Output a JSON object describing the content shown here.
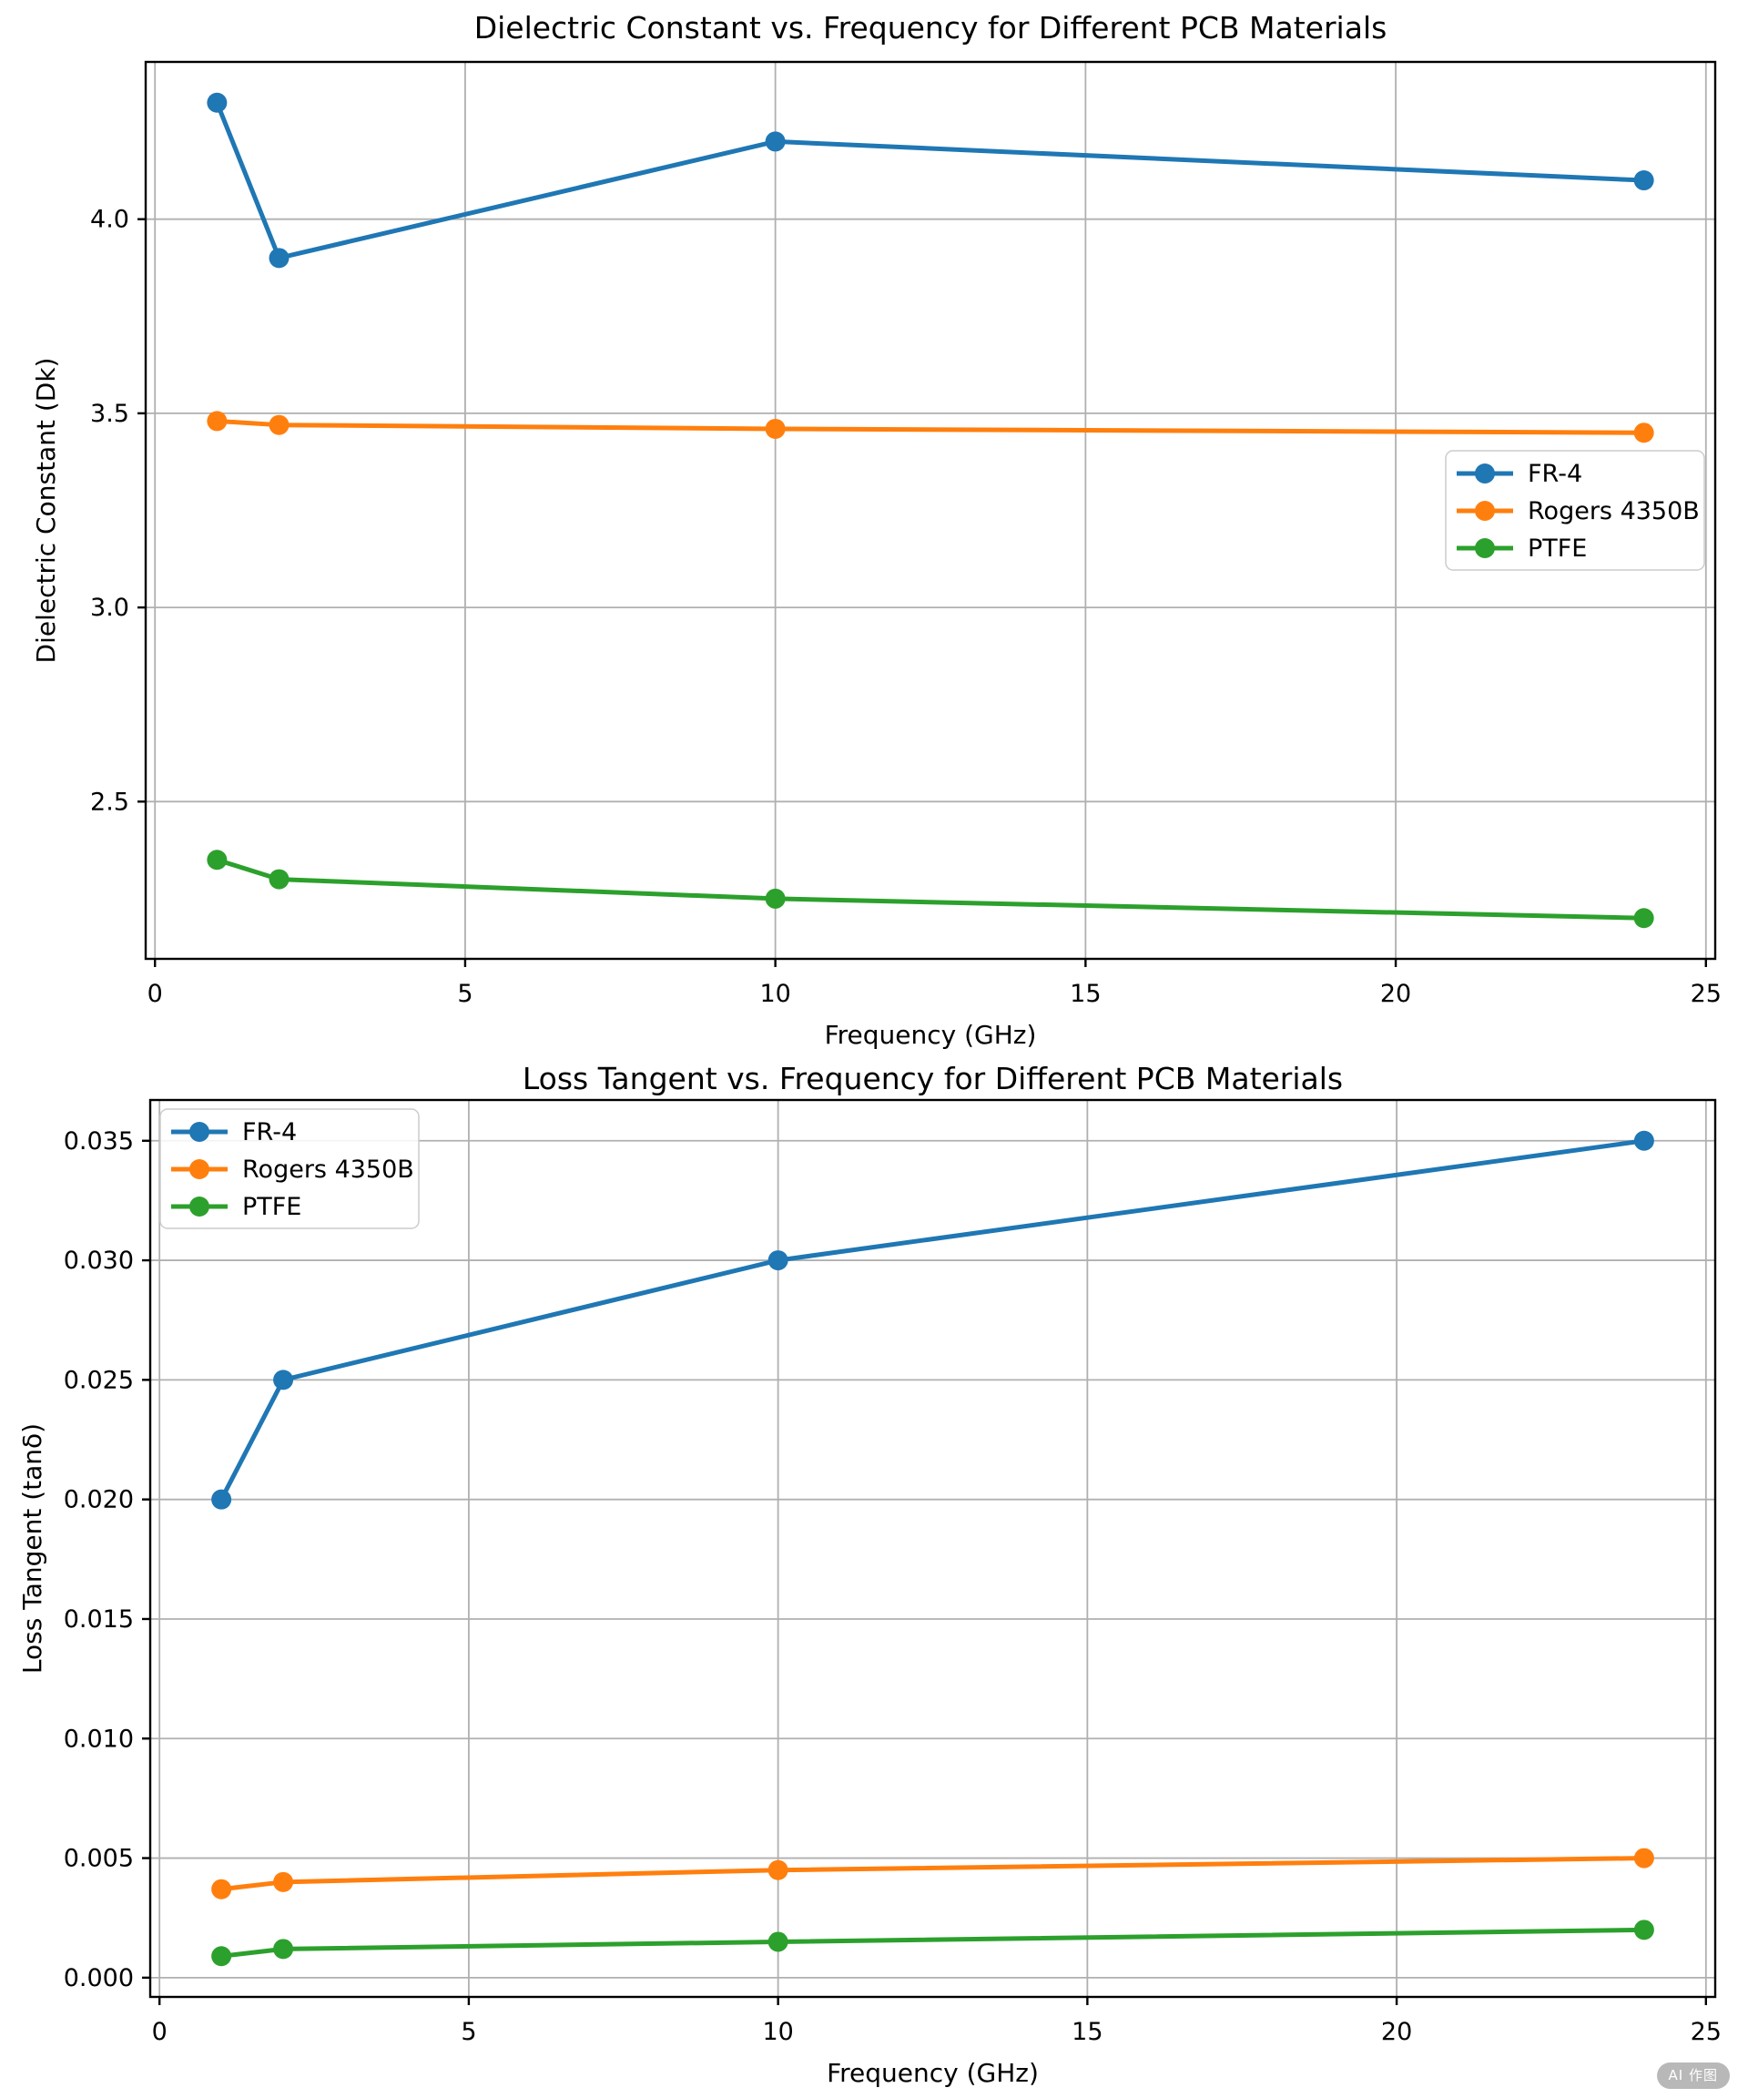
{
  "watermark": {
    "label": "AI 作图"
  },
  "chart_data": [
    {
      "type": "line",
      "title": "Dielectric Constant vs. Frequency for Different PCB Materials",
      "xlabel": "Frequency (GHz)",
      "ylabel": "Dielectric Constant (Dk)",
      "x": [
        1,
        2,
        10,
        24
      ],
      "series": [
        {
          "name": "FR-4",
          "color": "#1f77b4",
          "values": [
            4.3,
            3.9,
            4.2,
            4.1
          ]
        },
        {
          "name": "Rogers 4350B",
          "color": "#ff7f0e",
          "values": [
            3.48,
            3.47,
            3.46,
            3.45
          ]
        },
        {
          "name": "PTFE",
          "color": "#2ca02c",
          "values": [
            2.35,
            2.3,
            2.25,
            2.2
          ]
        }
      ],
      "xlim": [
        -0.15,
        25.15
      ],
      "ylim": [
        2.095,
        4.405
      ],
      "xticks": {
        "values": [
          0,
          5,
          10,
          15,
          20,
          25
        ],
        "labels": [
          "0",
          "5",
          "10",
          "15",
          "20",
          "25"
        ]
      },
      "yticks": {
        "values": [
          2.5,
          3.0,
          3.5,
          4.0
        ],
        "labels": [
          "2.5",
          "3.0",
          "3.5",
          "4.0"
        ]
      },
      "grid": true,
      "legend": {
        "position": "center-right",
        "entries": [
          "FR-4",
          "Rogers 4350B",
          "PTFE"
        ]
      }
    },
    {
      "type": "line",
      "title": "Loss Tangent vs. Frequency for Different PCB Materials",
      "xlabel": "Frequency (GHz)",
      "ylabel": "Loss Tangent (tanδ)",
      "x": [
        1,
        2,
        10,
        24
      ],
      "series": [
        {
          "name": "FR-4",
          "color": "#1f77b4",
          "values": [
            0.02,
            0.025,
            0.03,
            0.035
          ]
        },
        {
          "name": "Rogers 4350B",
          "color": "#ff7f0e",
          "values": [
            0.0037,
            0.004,
            0.0045,
            0.005
          ]
        },
        {
          "name": "PTFE",
          "color": "#2ca02c",
          "values": [
            0.0009,
            0.0012,
            0.0015,
            0.002
          ]
        }
      ],
      "xlim": [
        -0.15,
        25.15
      ],
      "ylim": [
        -0.000805,
        0.036705
      ],
      "xticks": {
        "values": [
          0,
          5,
          10,
          15,
          20,
          25
        ],
        "labels": [
          "0",
          "5",
          "10",
          "15",
          "20",
          "25"
        ]
      },
      "yticks": {
        "values": [
          0.0,
          0.005,
          0.01,
          0.015,
          0.02,
          0.025,
          0.03,
          0.035
        ],
        "labels": [
          "0.000",
          "0.005",
          "0.010",
          "0.015",
          "0.020",
          "0.025",
          "0.030",
          "0.035"
        ]
      },
      "grid": true,
      "legend": {
        "position": "top-left",
        "entries": [
          "FR-4",
          "Rogers 4350B",
          "PTFE"
        ]
      }
    }
  ]
}
